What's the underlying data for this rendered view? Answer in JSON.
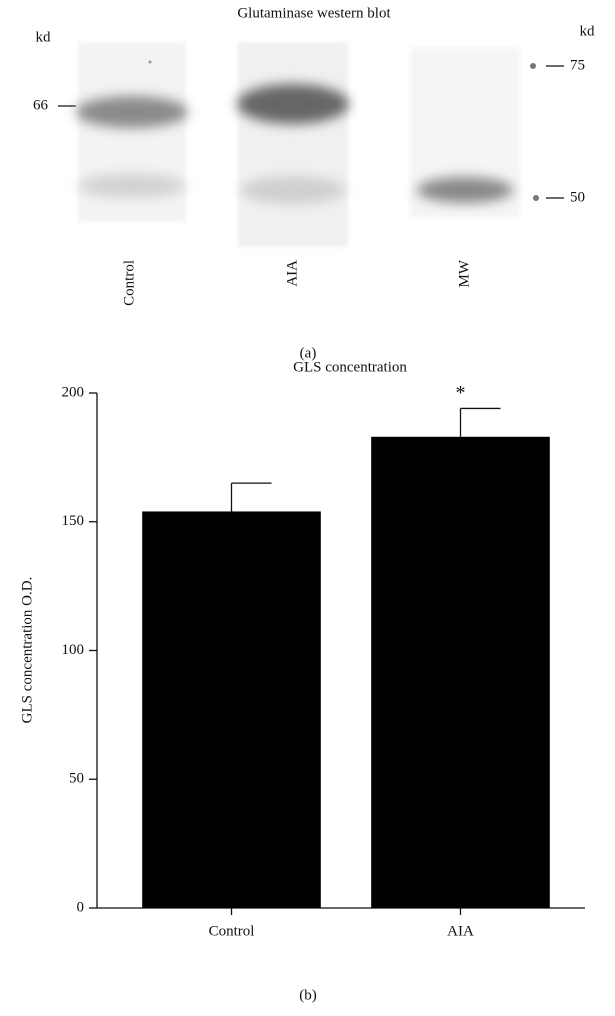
{
  "blot": {
    "title": "Glutaminase western blot",
    "left_unit": "kd",
    "right_unit": "kd",
    "left_marker": "66",
    "right_markers": [
      "75",
      "50"
    ],
    "lanes": [
      "Control",
      "AIA",
      "MW"
    ],
    "panel_label": "(a)"
  },
  "chart_data": {
    "type": "bar",
    "title": "GLS concentration",
    "y_label": "GLS concentration O.D.",
    "categories": [
      "Control",
      "AIA"
    ],
    "values": [
      154,
      183
    ],
    "errors": [
      11,
      11
    ],
    "color": "#000000",
    "annotations": [
      null,
      "*"
    ],
    "ylim": [
      0,
      200
    ],
    "yticks": [
      0,
      50,
      100,
      150,
      200
    ],
    "panel_label": "(b)"
  }
}
